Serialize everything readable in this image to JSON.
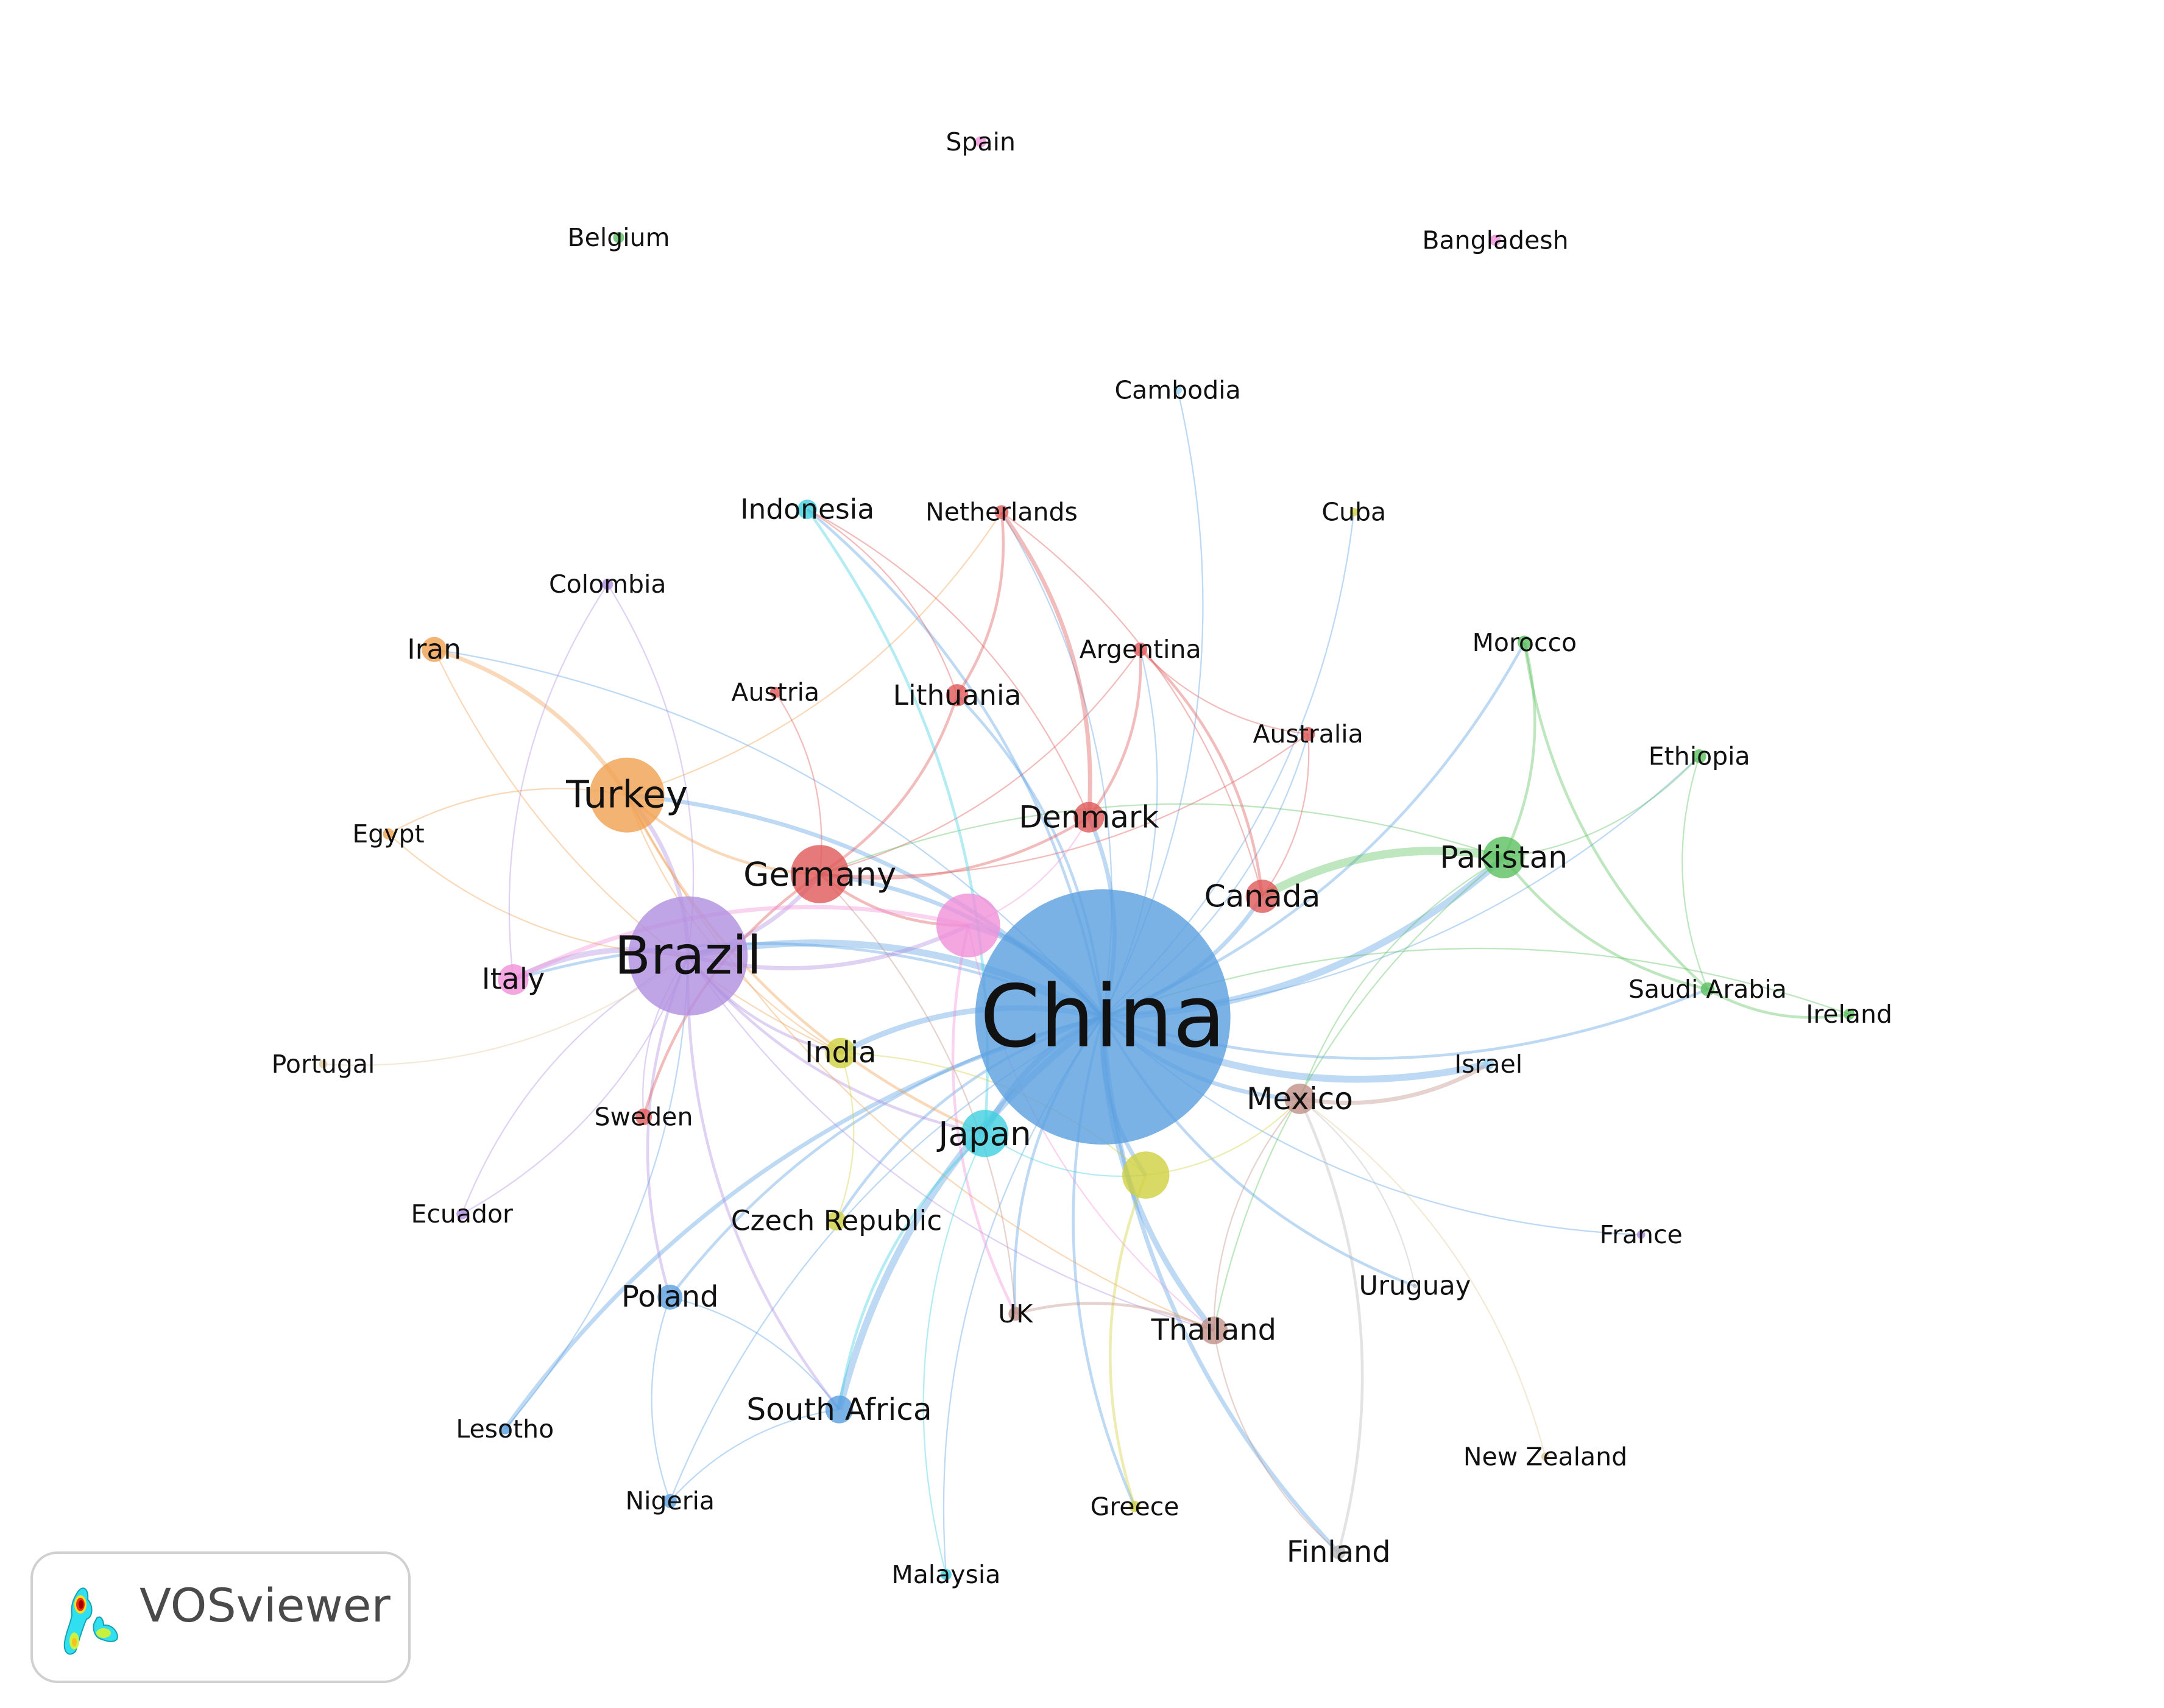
{
  "network": {
    "clusters": {
      "blue": "#5a9fe0",
      "purple": "#b08ee0",
      "orange": "#f0a050",
      "red": "#e05858",
      "pink": "#f090d8",
      "green": "#5cc060",
      "cyan": "#40d0e0",
      "yellow": "#d0d040",
      "brown": "#c09088",
      "lightblue": "#9cd4f4",
      "grey": "#b8b8b8",
      "tan": "#e0c898"
    },
    "nodes": [
      {
        "label": "China",
        "cluster": "blue"
      },
      {
        "label": "Brazil",
        "cluster": "purple"
      },
      {
        "label": "Turkey",
        "cluster": "orange"
      },
      {
        "label": "Germany",
        "cluster": "red"
      },
      {
        "label": "",
        "cluster": "pink"
      },
      {
        "label": "Pakistan",
        "cluster": "green"
      },
      {
        "label": "Canada",
        "cluster": "red"
      },
      {
        "label": "Denmark",
        "cluster": "red"
      },
      {
        "label": "Japan",
        "cluster": "cyan"
      },
      {
        "label": "",
        "cluster": "yellow"
      },
      {
        "label": "India",
        "cluster": "yellow"
      },
      {
        "label": "Mexico",
        "cluster": "brown"
      },
      {
        "label": "Thailand",
        "cluster": "brown"
      },
      {
        "label": "South Africa",
        "cluster": "blue"
      },
      {
        "label": "Poland",
        "cluster": "blue"
      },
      {
        "label": "Italy",
        "cluster": "pink"
      },
      {
        "label": "Iran",
        "cluster": "orange"
      },
      {
        "label": "Lithuania",
        "cluster": "red"
      },
      {
        "label": "Argentina",
        "cluster": "red"
      },
      {
        "label": "Australia",
        "cluster": "red"
      },
      {
        "label": "Netherlands",
        "cluster": "red"
      },
      {
        "label": "Austria",
        "cluster": "red"
      },
      {
        "label": "Indonesia",
        "cluster": "cyan"
      },
      {
        "label": "Colombia",
        "cluster": "purple"
      },
      {
        "label": "Egypt",
        "cluster": "orange"
      },
      {
        "label": "Morocco",
        "cluster": "green"
      },
      {
        "label": "Ethiopia",
        "cluster": "green"
      },
      {
        "label": "Saudi Arabia",
        "cluster": "green"
      },
      {
        "label": "Ireland",
        "cluster": "green"
      },
      {
        "label": "Israel",
        "cluster": "lightblue"
      },
      {
        "label": "France",
        "cluster": "purple"
      },
      {
        "label": "Uruguay",
        "cluster": "grey"
      },
      {
        "label": "New Zealand",
        "cluster": "tan"
      },
      {
        "label": "Finland",
        "cluster": "grey"
      },
      {
        "label": "Greece",
        "cluster": "yellow"
      },
      {
        "label": "Malaysia",
        "cluster": "cyan"
      },
      {
        "label": "UK",
        "cluster": "brown"
      },
      {
        "label": "Czech Republic",
        "cluster": "yellow"
      },
      {
        "label": "Sweden",
        "cluster": "red"
      },
      {
        "label": "Ecuador",
        "cluster": "purple"
      },
      {
        "label": "Lesotho",
        "cluster": "blue"
      },
      {
        "label": "Nigeria",
        "cluster": "blue"
      },
      {
        "label": "Portugal",
        "cluster": "tan"
      },
      {
        "label": "Cambodia",
        "cluster": "lightblue"
      },
      {
        "label": "Cuba",
        "cluster": "yellow"
      },
      {
        "label": "Spain",
        "cluster": "pink"
      },
      {
        "label": "Belgium",
        "cluster": "green"
      },
      {
        "label": "Bangladesh",
        "cluster": "pink"
      }
    ]
  },
  "logo": {
    "text": "VOSviewer"
  }
}
